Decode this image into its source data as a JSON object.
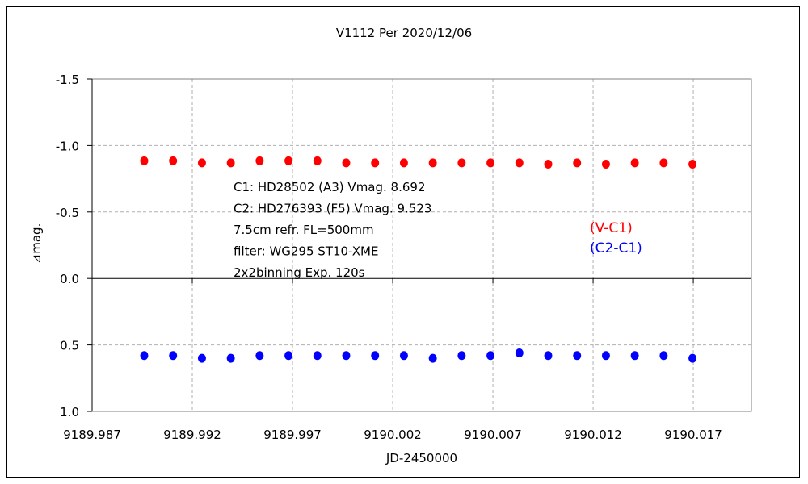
{
  "chart_data": {
    "type": "scatter",
    "title": "V1112 Per   2020/12/06",
    "xlabel": "JD-2450000",
    "ylabel": "⊿mag.",
    "xlim": [
      9189.987,
      9190.0199
    ],
    "ylim": [
      -1.5,
      1.0
    ],
    "y_inverted": true,
    "grid": true,
    "x_ticks": [
      "9189.987",
      "9189.992",
      "9189.997",
      "9190.002",
      "9190.007",
      "9190.012",
      "9190.017"
    ],
    "x_tick_values": [
      9189.987,
      9189.992,
      9189.997,
      9190.002,
      9190.007,
      9190.012,
      9190.017
    ],
    "y_ticks": [
      "-1.5",
      "-1.0",
      "-0.5",
      "0.0",
      "0.5",
      "1.0"
    ],
    "y_tick_values": [
      -1.5,
      -1.0,
      -0.5,
      0.0,
      0.5,
      1.0
    ],
    "x": [
      9189.9896,
      9189.99104,
      9189.99248,
      9189.99392,
      9189.99536,
      9189.9968,
      9189.99824,
      9189.99968,
      9190.00112,
      9190.00256,
      9190.004,
      9190.00544,
      9190.00688,
      9190.00832,
      9190.00976,
      9190.0112,
      9190.01264,
      9190.01408,
      9190.01552,
      9190.01696
    ],
    "series": [
      {
        "name": "(V-C1)",
        "color": "#ff0000",
        "values": [
          -0.885,
          -0.885,
          -0.87,
          -0.87,
          -0.885,
          -0.885,
          -0.885,
          -0.87,
          -0.87,
          -0.87,
          -0.87,
          -0.87,
          -0.87,
          -0.87,
          -0.86,
          -0.87,
          -0.86,
          -0.87,
          -0.87,
          -0.86
        ]
      },
      {
        "name": "(C2-C1)",
        "color": "#0000ff",
        "values": [
          0.58,
          0.58,
          0.6,
          0.6,
          0.58,
          0.58,
          0.58,
          0.58,
          0.58,
          0.58,
          0.6,
          0.58,
          0.58,
          0.56,
          0.58,
          0.58,
          0.58,
          0.58,
          0.58,
          0.6
        ]
      }
    ],
    "legend_placement": "right-middle",
    "annotations": [
      "C1: HD28502 (A3) Vmag. 8.692",
      "C2: HD276393 (F5) Vmag. 9.523",
      "7.5cm refr. FL=500mm",
      "filter: WG295  ST10-XME",
      "2x2binning  Exp. 120s"
    ]
  }
}
